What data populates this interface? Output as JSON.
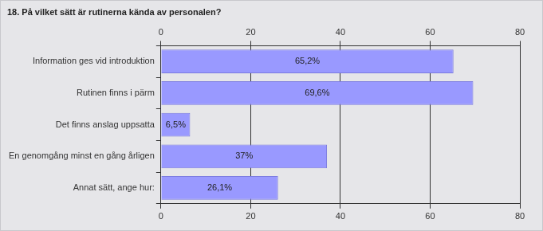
{
  "chart_data": {
    "type": "bar",
    "orientation": "horizontal",
    "title": "18. På vilket sätt är rutinerna kända av personalen?",
    "categories": [
      "Information ges vid introduktion",
      "Rutinen finns i pärm",
      "Det finns anslag uppsatta",
      "En genomgång minst en gång årligen",
      "Annat sätt, ange hur:"
    ],
    "values": [
      65.2,
      69.6,
      6.5,
      37,
      26.1
    ],
    "value_labels": [
      "65,2%",
      "69,6%",
      "6,5%",
      "37%",
      "26,1%"
    ],
    "data_labels": true,
    "color": "#9999ff",
    "xlim": [
      0,
      80
    ],
    "xticks": [
      0,
      20,
      40,
      60,
      80
    ],
    "grid": true
  }
}
